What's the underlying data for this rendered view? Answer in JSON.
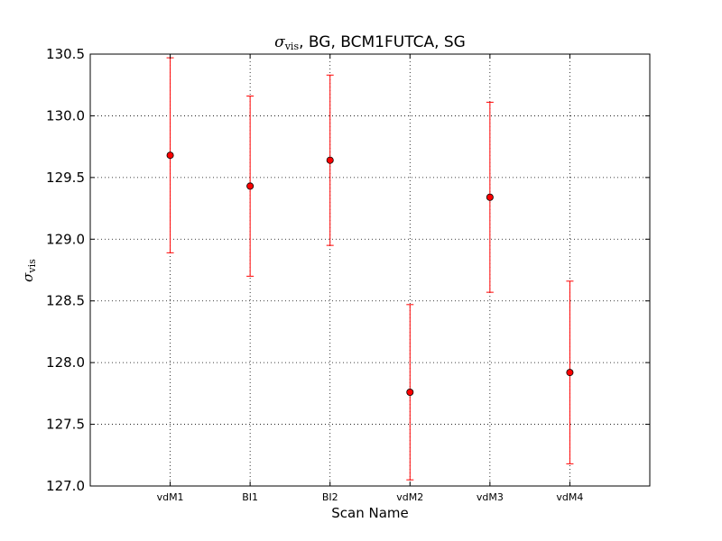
{
  "chart_data": {
    "type": "scatter",
    "title": {
      "symbol": "σ",
      "subscript": "vis",
      "rest": ", BG, BCM1FUTCA, SG"
    },
    "xlabel": "Scan Name",
    "ylabel": {
      "symbol": "σ",
      "subscript": "vis"
    },
    "categories": [
      "vdM1",
      "BI1",
      "BI2",
      "vdM2",
      "vdM3",
      "vdM4"
    ],
    "values": [
      129.68,
      129.43,
      129.64,
      127.76,
      129.34,
      127.92
    ],
    "yerr": [
      0.79,
      0.73,
      0.69,
      0.71,
      0.77,
      0.74
    ],
    "ylim": [
      127.0,
      130.5
    ],
    "yticks": [
      "127.0",
      "127.5",
      "128.0",
      "128.5",
      "129.0",
      "129.5",
      "130.0",
      "130.5"
    ],
    "grid": true,
    "marker_color": "#ff0000",
    "errorbar_color": "#ff0000",
    "marker_edge_color": "#000000"
  }
}
